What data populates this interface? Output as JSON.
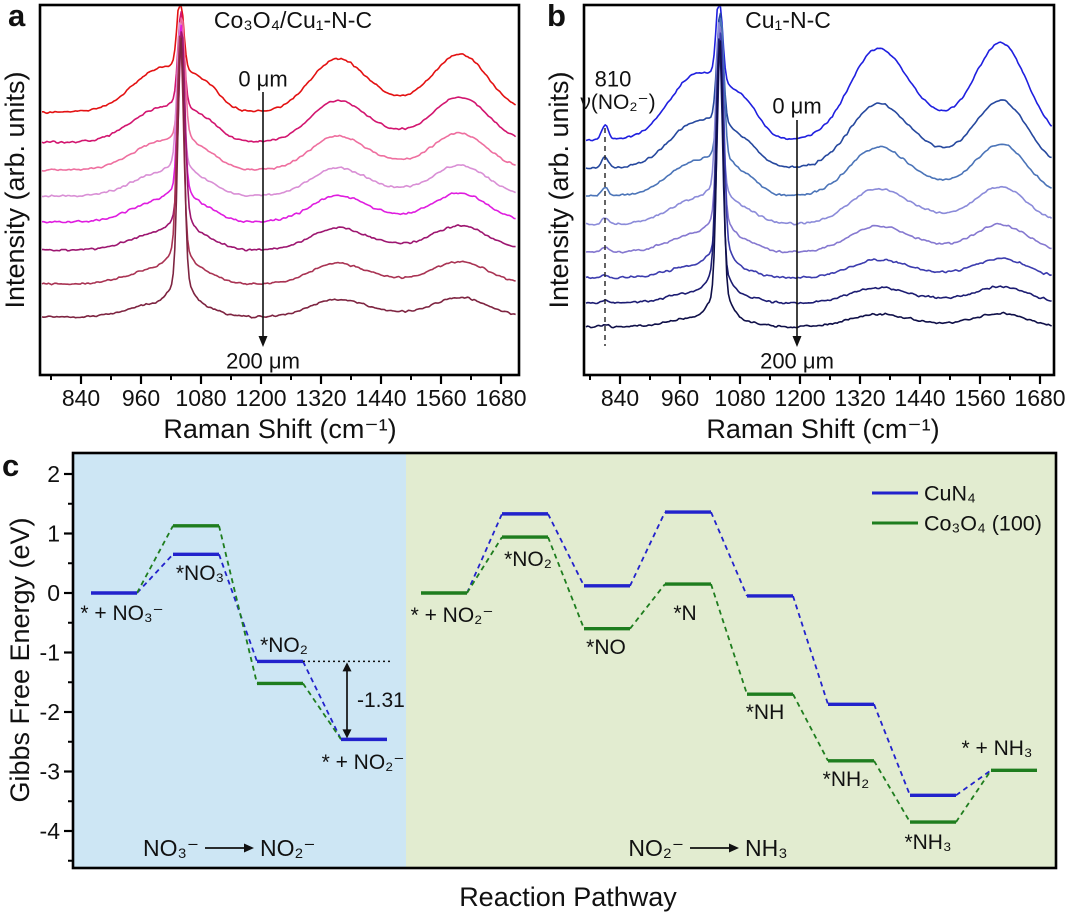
{
  "panels": {
    "a": "a",
    "b": "b",
    "c": "c"
  },
  "chart_data": [
    {
      "panel": "a",
      "type": "line",
      "title": "Co₃O₄/Cu₁-N-C",
      "xlabel": "Raman Shift (cm⁻¹)",
      "ylabel": "Intensity (arb. units)",
      "x_ticks": [
        840,
        960,
        1080,
        1200,
        1320,
        1440,
        1560,
        1680
      ],
      "x_range_cm1": [
        758,
        1716
      ],
      "trace_count": 8,
      "depth_labels": {
        "top": "0 μm",
        "bottom": "200 μm"
      },
      "main_peak_cm1": 1040,
      "broad_bands_cm1": [
        1000,
        1348,
        1598
      ],
      "colors": [
        "#e31112",
        "#d2156f",
        "#ee6f9f",
        "#d98fd5",
        "#df1ddf",
        "#9d1670",
        "#a93353",
        "#7e2441"
      ]
    },
    {
      "panel": "b",
      "type": "line",
      "title": "Cu₁-N-C",
      "xlabel": "Raman Shift (cm⁻¹)",
      "ylabel": "Intensity (arb. units)",
      "x_ticks": [
        840,
        960,
        1080,
        1200,
        1320,
        1440,
        1560,
        1680
      ],
      "x_range_cm1": [
        760,
        1708
      ],
      "trace_count": 8,
      "depth_labels": {
        "top": "0 μm",
        "bottom": "200 μm"
      },
      "main_peak_cm1": 1040,
      "broad_bands_cm1": [
        995,
        1352,
        1602
      ],
      "peak_annotation": {
        "position_cm1": 810,
        "line1": "810",
        "line2": "ν(NO₂⁻)"
      },
      "colors": [
        "#1f1fdf",
        "#26489e",
        "#4b74b8",
        "#8b8bd9",
        "#8578d0",
        "#3c3cae",
        "#1c1c72",
        "#0f0f48"
      ]
    },
    {
      "panel": "c",
      "type": "energy-diagram",
      "xlabel": "Reaction Pathway",
      "ylabel": "Gibbs Free Energy (eV)",
      "ylim": [
        -4.6,
        2.3
      ],
      "y_ticks": [
        2,
        1,
        0,
        -1,
        -2,
        -3,
        -4
      ],
      "legend": [
        {
          "label": "CuN₄",
          "series": "CuN4",
          "color": "#2222cc"
        },
        {
          "label": "Co₃O₄ (100)",
          "series": "Co3O4",
          "color": "#1e7d1e"
        }
      ],
      "sections": [
        {
          "reaction": {
            "from": "NO₃⁻",
            "to": "NO₂⁻"
          },
          "background": "#cde6f4",
          "steps": [
            {
              "label": "* + NO₃⁻",
              "levels": {
                "CuN4": 0.0,
                "Co3O4": 0.0
              },
              "shared": "CuN4"
            },
            {
              "label": "*NO₃",
              "levels": {
                "CuN4": 0.65,
                "Co3O4": 1.13
              }
            },
            {
              "label": "*NO₂",
              "levels": {
                "CuN4": -1.15,
                "Co3O4": -1.52
              }
            },
            {
              "label": "* + NO₂⁻",
              "levels": {
                "CuN4": -2.46,
                "Co3O4": -2.46
              },
              "shared": "CuN4"
            }
          ],
          "annotation": {
            "text": "-1.31",
            "value": -1.31
          }
        },
        {
          "reaction": {
            "from": "NO₂⁻",
            "to": "NH₃"
          },
          "background": "#e2ecd0",
          "steps": [
            {
              "label": "* + NO₂⁻",
              "levels": {
                "CuN4": 0.0,
                "Co3O4": 0.0
              },
              "shared": "Co3O4"
            },
            {
              "label": "*NO₂",
              "levels": {
                "CuN4": 1.33,
                "Co3O4": 0.94
              }
            },
            {
              "label": "*NO",
              "levels": {
                "CuN4": 0.12,
                "Co3O4": -0.6
              }
            },
            {
              "label": "*N",
              "levels": {
                "CuN4": 1.36,
                "Co3O4": 0.15
              }
            },
            {
              "label": "*NH",
              "levels": {
                "CuN4": -0.05,
                "Co3O4": -1.7
              }
            },
            {
              "label": "*NH₂",
              "levels": {
                "CuN4": -1.87,
                "Co3O4": -2.82
              }
            },
            {
              "label": "*NH₃",
              "levels": {
                "CuN4": -3.4,
                "Co3O4": -3.85
              }
            },
            {
              "label": "* + NH₃",
              "levels": {
                "CuN4": -2.98,
                "Co3O4": -2.98
              },
              "shared": "Co3O4"
            }
          ]
        }
      ]
    }
  ]
}
